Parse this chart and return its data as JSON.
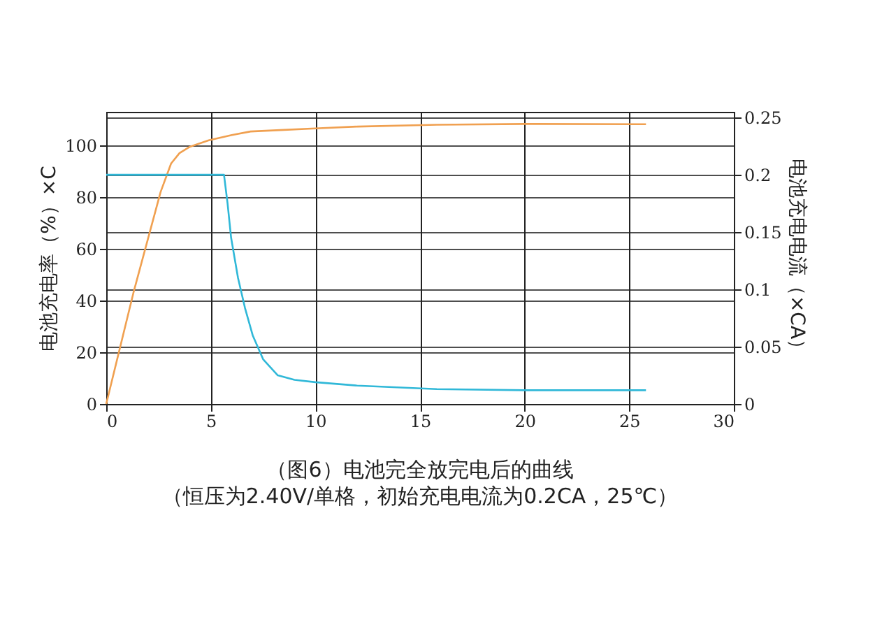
{
  "chart_data": {
    "type": "line",
    "title": "（图6）电池完全放完电后的曲线",
    "subtitle": "（恒压为2.40V/单格，初始充电电流为0.2CA，25℃）",
    "ylabel": "电池充电率（%）×C",
    "y2label": "电池充电电流（×CA）",
    "xlim": [
      0,
      30
    ],
    "xticks": [
      0,
      5,
      10,
      15,
      20,
      25,
      30
    ],
    "ylim": [
      0,
      113
    ],
    "yticks": [
      0,
      20,
      40,
      60,
      80,
      100
    ],
    "y2lim": [
      0,
      0.255
    ],
    "y2ticks": [
      0,
      0.05,
      0.1,
      0.15,
      0.2,
      0.25
    ],
    "grid": true,
    "series": [
      {
        "color": "#f0a050",
        "x": [
          0,
          1.3,
          2.6,
          3.1,
          3.5,
          4.0,
          4.9,
          6.0,
          6.9,
          8.5,
          10,
          12,
          15.8,
          20,
          25.8
        ],
        "values": [
          0,
          43,
          82,
          93,
          97,
          99.5,
          102,
          104,
          105.4,
          106,
          106.6,
          107.3,
          108,
          108.3,
          108.2
        ]
      },
      {
        "color": "#30b8d8",
        "axis": "y2",
        "x": [
          0,
          1,
          2,
          3,
          4,
          5,
          5.63,
          5.8,
          5.97,
          6.3,
          6.63,
          7.0,
          7.5,
          8.2,
          9,
          10,
          12,
          15.8,
          20,
          25.8
        ],
        "values": [
          0.2,
          0.2,
          0.2,
          0.2,
          0.2,
          0.2,
          0.2,
          0.175,
          0.145,
          0.11,
          0.084,
          0.06,
          0.039,
          0.025,
          0.021,
          0.019,
          0.016,
          0.013,
          0.012,
          0.012
        ]
      }
    ]
  }
}
